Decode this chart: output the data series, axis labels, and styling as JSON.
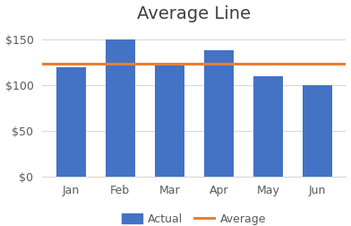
{
  "title": "Average Line",
  "categories": [
    "Jan",
    "Feb",
    "Mar",
    "Apr",
    "May",
    "Jun"
  ],
  "values": [
    120,
    150,
    122,
    138,
    110,
    100
  ],
  "average": 123.33,
  "bar_color": "#4472C4",
  "avg_line_color": "#ED7D31",
  "ylim": [
    0,
    165
  ],
  "yticks": [
    0,
    50,
    100,
    150
  ],
  "legend_labels": [
    "Actual",
    "Average"
  ],
  "title_fontsize": 14,
  "tick_fontsize": 9,
  "legend_fontsize": 9,
  "background_color": "#FFFFFF",
  "plot_bg_color": "#FFFFFF",
  "grid_color": "#D9D9D9",
  "bar_width": 0.6,
  "avg_linewidth": 2.2
}
